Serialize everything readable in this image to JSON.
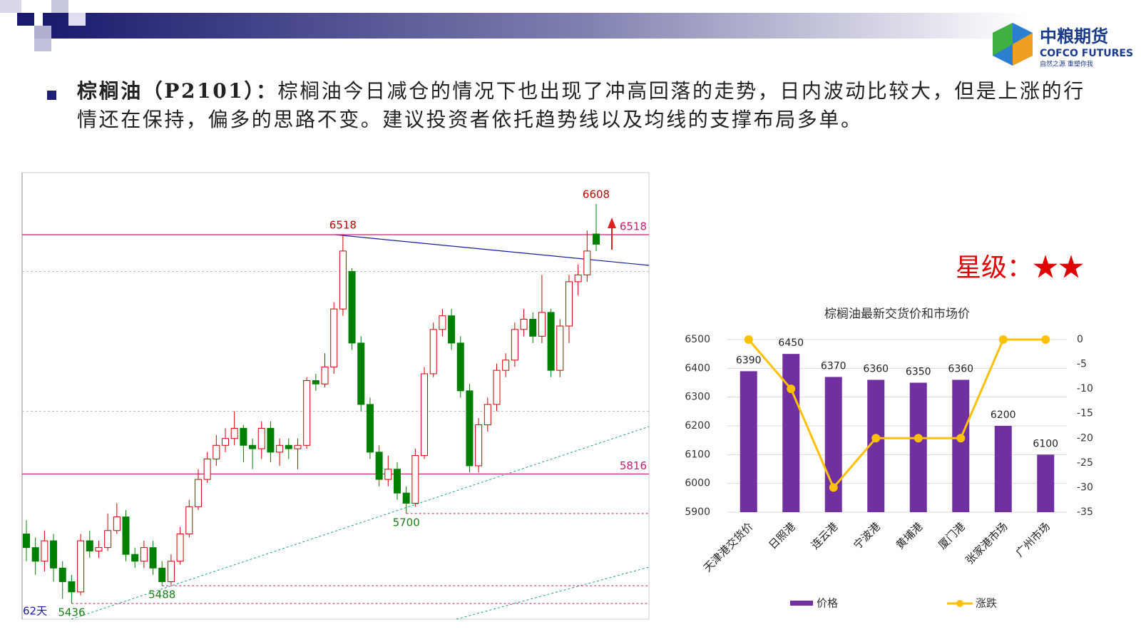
{
  "header": {
    "logo": {
      "name": "中粮期货",
      "english": "COFCO FUTURES",
      "slogan": "自然之源 重塑你我"
    },
    "bullet": {
      "title": "棕榈油（P2101）：",
      "text": "棕榈油今日减仓的情况下也出现了冲高回落的走势，日内波动比较大，但是上涨的行情还在保持，偏多的思路不变。建议投资者依托趋势线以及均线的支撑布局多单。"
    },
    "rating": "星级：★★"
  },
  "chart_data": [
    {
      "type": "candlestick",
      "up_color": "#d00000",
      "down_color": "#007f00",
      "ylim": [
        5390,
        6700
      ],
      "open": [
        5640,
        5600,
        5560,
        5620,
        5540,
        5500,
        5470,
        5620,
        5590,
        5600,
        5650,
        5690,
        5580,
        5560,
        5600,
        5540,
        5500,
        5560,
        5640,
        5720,
        5800,
        5860,
        5900,
        5920,
        5950,
        5900,
        5890,
        5950,
        5880,
        5900,
        5890,
        5900,
        6090,
        6080,
        6130,
        6300,
        6410,
        6200,
        6020,
        5880,
        5800,
        5830,
        5760,
        5730,
        5870,
        6110,
        6240,
        6280,
        6200,
        6060,
        5840,
        5960,
        6020,
        6120,
        6150,
        6240,
        6270,
        6220,
        6290,
        6120,
        6250,
        6380,
        6400,
        6520
      ],
      "high": [
        5680,
        5630,
        5650,
        5640,
        5560,
        5520,
        5640,
        5650,
        5620,
        5700,
        5730,
        5710,
        5600,
        5620,
        5620,
        5560,
        5580,
        5660,
        5740,
        5830,
        5880,
        5930,
        5950,
        6000,
        5960,
        5920,
        5970,
        5970,
        5920,
        5920,
        5920,
        6100,
        6110,
        6170,
        6320,
        6518,
        6420,
        6220,
        6040,
        5900,
        5870,
        5850,
        5780,
        5890,
        6130,
        6260,
        6300,
        6300,
        6220,
        6080,
        5980,
        6040,
        6140,
        6170,
        6260,
        6300,
        6290,
        6400,
        6300,
        6270,
        6400,
        6430,
        6530,
        6608
      ],
      "low": [
        5560,
        5520,
        5530,
        5500,
        5450,
        5436,
        5460,
        5570,
        5570,
        5590,
        5640,
        5560,
        5540,
        5540,
        5520,
        5488,
        5490,
        5550,
        5630,
        5710,
        5790,
        5840,
        5880,
        5900,
        5850,
        5830,
        5860,
        5850,
        5840,
        5860,
        5830,
        5890,
        6060,
        6070,
        6110,
        6280,
        6180,
        6000,
        5860,
        5780,
        5780,
        5740,
        5700,
        5720,
        5860,
        6100,
        6220,
        6180,
        6040,
        5820,
        5820,
        5940,
        6000,
        6100,
        6130,
        6220,
        6200,
        6200,
        6100,
        6100,
        6200,
        6340,
        6380,
        6470
      ],
      "close": [
        5600,
        5560,
        5620,
        5540,
        5500,
        5470,
        5620,
        5590,
        5600,
        5650,
        5690,
        5580,
        5560,
        5600,
        5540,
        5500,
        5560,
        5640,
        5720,
        5800,
        5860,
        5900,
        5920,
        5950,
        5900,
        5890,
        5950,
        5880,
        5900,
        5890,
        5900,
        6090,
        6080,
        6130,
        6300,
        6470,
        6200,
        6020,
        5880,
        5800,
        5830,
        5760,
        5730,
        5870,
        6110,
        6240,
        6280,
        6200,
        6060,
        5840,
        5960,
        6020,
        6120,
        6150,
        6240,
        6270,
        6220,
        6290,
        6120,
        6250,
        6380,
        6400,
        6470,
        6490
      ],
      "levels": [
        6518,
        5816
      ],
      "grid_levels": [
        6410,
        6000
      ],
      "annotations": [
        {
          "value": 6608,
          "index": 63,
          "color": "#c00000"
        },
        {
          "value": 6518,
          "index": 35,
          "color": "#c00000"
        },
        {
          "value": 5700,
          "index": 42,
          "color": "#1a7f1a"
        },
        {
          "value": 5488,
          "index": 15,
          "color": "#1a7f1a"
        },
        {
          "value": 5436,
          "index": 5,
          "color": "#1a7f1a"
        }
      ],
      "period_label": "62天"
    },
    {
      "type": "bar",
      "title": "棕榈油最新交货价和市场价",
      "categories": [
        "天津港交货价",
        "日照港",
        "连云港",
        "宁波港",
        "黄埔港",
        "厦门港",
        "张家港市场",
        "广州市场"
      ],
      "series": [
        {
          "name": "价格",
          "color": "#7030a0",
          "values": [
            6390,
            6450,
            6370,
            6360,
            6350,
            6360,
            6200,
            6100
          ]
        },
        {
          "name": "涨跌",
          "color": "#ffc000",
          "values": [
            0,
            -10,
            -30,
            -20,
            -20,
            -20,
            0,
            0
          ],
          "axis": "y2"
        }
      ],
      "ylim": [
        5900,
        6500
      ],
      "yticks": [
        5900,
        6000,
        6100,
        6200,
        6300,
        6400,
        6500
      ],
      "y2lim": [
        -35,
        0
      ],
      "y2ticks": [
        0,
        -5,
        -10,
        -15,
        -20,
        -25,
        -30,
        -35
      ],
      "legend": "bottom"
    }
  ]
}
